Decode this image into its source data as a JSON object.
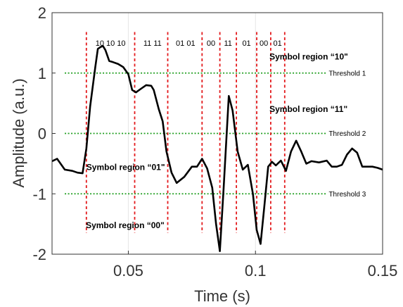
{
  "chart_data": {
    "type": "line",
    "xlabel": "Time (s)",
    "ylabel": "Amplitude (a.u.)",
    "xlim": [
      0.02,
      0.15
    ],
    "ylim": [
      -2,
      2
    ],
    "x_ticks": [
      0.05,
      0.1,
      0.15
    ],
    "x_tick_labels": [
      "0.05",
      "0.1",
      "0.15"
    ],
    "y_ticks": [
      -2,
      -1,
      0,
      1,
      2
    ],
    "y_tick_labels": [
      "-2",
      "-1",
      "0",
      "1",
      "2"
    ],
    "grid": "x-only",
    "colors": {
      "signal": "#000000",
      "boundary": "#e31a1c",
      "threshold": "#1f9e1f",
      "axis": "#333333",
      "grid": "#e6e6e6"
    },
    "series": [
      {
        "x": [
          0.02,
          0.022,
          0.025,
          0.028,
          0.03,
          0.032,
          0.0335,
          0.035,
          0.037,
          0.038,
          0.039,
          0.04,
          0.041,
          0.0425,
          0.044,
          0.046,
          0.048,
          0.05,
          0.0515,
          0.053,
          0.055,
          0.057,
          0.059,
          0.06,
          0.062,
          0.0635,
          0.065,
          0.067,
          0.069,
          0.072,
          0.075,
          0.077,
          0.079,
          0.081,
          0.083,
          0.0845,
          0.086,
          0.0875,
          0.0895,
          0.091,
          0.093,
          0.095,
          0.097,
          0.099,
          0.1005,
          0.102,
          0.1035,
          0.105,
          0.1065,
          0.108,
          0.11,
          0.112,
          0.114,
          0.116,
          0.118,
          0.12,
          0.122,
          0.125,
          0.128,
          0.13,
          0.132,
          0.134,
          0.136,
          0.138,
          0.14,
          0.142,
          0.144,
          0.146,
          0.148,
          0.15
        ],
        "y": [
          -0.46,
          -0.42,
          -0.6,
          -0.62,
          -0.65,
          -0.66,
          -0.25,
          0.45,
          1.1,
          1.4,
          1.43,
          1.45,
          1.38,
          1.2,
          1.18,
          1.15,
          1.1,
          0.98,
          0.72,
          0.68,
          0.74,
          0.8,
          0.79,
          0.72,
          0.4,
          0.2,
          -0.3,
          -0.65,
          -0.82,
          -0.72,
          -0.55,
          -0.55,
          -0.42,
          -0.58,
          -0.9,
          -1.5,
          -1.95,
          -0.9,
          0.62,
          0.38,
          -0.3,
          -0.6,
          -0.52,
          -1.0,
          -1.6,
          -1.83,
          -1.2,
          -0.55,
          -0.47,
          -0.53,
          -0.45,
          -0.62,
          -0.3,
          -0.12,
          -0.3,
          -0.5,
          -0.46,
          -0.48,
          -0.45,
          -0.55,
          -0.55,
          -0.52,
          -0.35,
          -0.25,
          -0.32,
          -0.55,
          -0.55,
          -0.55,
          -0.57,
          -0.6
        ]
      }
    ],
    "boundaries": [
      0.0335,
      0.0525,
      0.0655,
      0.079,
      0.086,
      0.0925,
      0.1005,
      0.106,
      0.1115
    ],
    "boundary_range": [
      -1.65,
      1.68
    ],
    "thresholds": [
      {
        "value": 1.0,
        "label": "Threshold 1"
      },
      {
        "value": 0.0,
        "label": "Threshold 2"
      },
      {
        "value": -1.0,
        "label": "Threshold 3"
      }
    ],
    "threshold_xrange": [
      0.025,
      0.128
    ],
    "bit_labels": [
      {
        "text": "10 10 10",
        "x": 0.043,
        "y": 1.5
      },
      {
        "text": "11 11",
        "x": 0.0595,
        "y": 1.5
      },
      {
        "text": "01 01",
        "x": 0.0725,
        "y": 1.5
      },
      {
        "text": "00",
        "x": 0.0825,
        "y": 1.5
      },
      {
        "text": "11",
        "x": 0.0892,
        "y": 1.5
      },
      {
        "text": "01",
        "x": 0.0965,
        "y": 1.5
      },
      {
        "text": "00",
        "x": 0.1033,
        "y": 1.5
      },
      {
        "text": "01",
        "x": 0.1087,
        "y": 1.5
      }
    ],
    "region_labels": [
      {
        "text": "Symbol region “10\"",
        "x": 0.1055,
        "y": 1.27
      },
      {
        "text": "Symbol region “11\"",
        "x": 0.1055,
        "y": 0.4
      },
      {
        "text": "Symbol region “01\"",
        "x": 0.0335,
        "y": -0.56
      },
      {
        "text": "Symbol region “00\"",
        "x": 0.0333,
        "y": -1.52
      }
    ]
  }
}
